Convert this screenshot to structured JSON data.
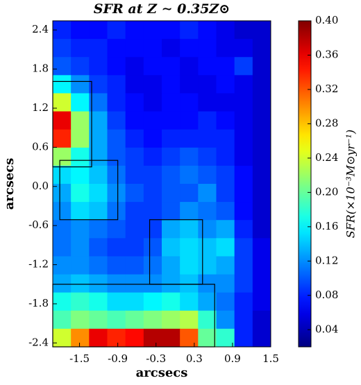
{
  "chart_data": {
    "type": "heatmap",
    "title": "SFR at Z ∼ 0.35Z⊙",
    "x_label": "arcsecs",
    "y_label": "arcsecs",
    "colorbar_label": "SFR(×10⁻³M⊙yr⁻¹)",
    "xlim": [
      -1.92,
      1.5
    ],
    "ylim": [
      -2.46,
      2.54
    ],
    "xticks": [
      -1.5,
      -0.9,
      -0.3,
      0.3,
      0.9,
      1.5
    ],
    "yticks": [
      2.4,
      1.8,
      1.2,
      0.6,
      {
        "value": 0,
        "label": "0.0"
      },
      -0.6,
      -1.2,
      -1.8,
      -2.4
    ],
    "zlim": [
      0.02,
      0.4
    ],
    "zticks": [
      0.04,
      0.08,
      0.12,
      0.16,
      {
        "value": 0.2,
        "label": "0.20"
      },
      0.24,
      0.28,
      0.32,
      0.36,
      {
        "value": 0.4,
        "label": "0.40"
      }
    ],
    "colormap": "jet",
    "z": [
      [
        0.08,
        0.07,
        0.07,
        0.08,
        0.07,
        0.07,
        0.07,
        0.08,
        0.07,
        0.06,
        0.05,
        0.05
      ],
      [
        0.09,
        0.08,
        0.08,
        0.07,
        0.07,
        0.07,
        0.06,
        0.07,
        0.07,
        0.06,
        0.06,
        0.05
      ],
      [
        0.1,
        0.09,
        0.08,
        0.07,
        0.06,
        0.07,
        0.07,
        0.06,
        0.07,
        0.07,
        0.09,
        0.05
      ],
      [
        0.16,
        0.12,
        0.09,
        0.08,
        0.06,
        0.06,
        0.07,
        0.06,
        0.06,
        0.07,
        0.06,
        0.05
      ],
      [
        0.24,
        0.16,
        0.11,
        0.08,
        0.07,
        0.06,
        0.07,
        0.07,
        0.06,
        0.06,
        0.06,
        0.05
      ],
      [
        0.36,
        0.22,
        0.13,
        0.09,
        0.07,
        0.07,
        0.07,
        0.07,
        0.08,
        0.07,
        0.06,
        0.05
      ],
      [
        0.34,
        0.22,
        0.13,
        0.1,
        0.08,
        0.07,
        0.08,
        0.08,
        0.08,
        0.08,
        0.06,
        0.05
      ],
      [
        0.22,
        0.17,
        0.13,
        0.1,
        0.09,
        0.08,
        0.09,
        0.1,
        0.09,
        0.08,
        0.06,
        0.05
      ],
      [
        0.15,
        0.16,
        0.14,
        0.11,
        0.09,
        0.09,
        0.1,
        0.11,
        0.1,
        0.09,
        0.07,
        0.05
      ],
      [
        0.13,
        0.17,
        0.15,
        0.12,
        0.1,
        0.09,
        0.1,
        0.1,
        0.12,
        0.09,
        0.07,
        0.05
      ],
      [
        0.12,
        0.15,
        0.14,
        0.11,
        0.09,
        0.09,
        0.1,
        0.12,
        0.11,
        0.1,
        0.07,
        0.05
      ],
      [
        0.11,
        0.12,
        0.11,
        0.1,
        0.09,
        0.09,
        0.13,
        0.14,
        0.12,
        0.13,
        0.08,
        0.05
      ],
      [
        0.11,
        0.12,
        0.1,
        0.09,
        0.09,
        0.1,
        0.14,
        0.15,
        0.14,
        0.15,
        0.09,
        0.06
      ],
      [
        0.12,
        0.12,
        0.11,
        0.1,
        0.1,
        0.11,
        0.13,
        0.15,
        0.14,
        0.13,
        0.09,
        0.06
      ],
      [
        0.13,
        0.14,
        0.13,
        0.12,
        0.12,
        0.12,
        0.13,
        0.14,
        0.12,
        0.12,
        0.09,
        0.06
      ],
      [
        0.17,
        0.18,
        0.17,
        0.15,
        0.15,
        0.16,
        0.17,
        0.15,
        0.13,
        0.11,
        0.08,
        0.06
      ],
      [
        0.19,
        0.21,
        0.2,
        0.19,
        0.2,
        0.21,
        0.22,
        0.23,
        0.18,
        0.12,
        0.08,
        0.05
      ],
      [
        0.24,
        0.3,
        0.36,
        0.34,
        0.35,
        0.38,
        0.38,
        0.32,
        0.2,
        0.18,
        0.08,
        0.05
      ]
    ],
    "regions": [
      {
        "x0": -1.92,
        "x1": -1.31,
        "y0": 0.3,
        "y1": 1.61
      },
      {
        "x0": -1.81,
        "x1": -0.9,
        "y0": -0.51,
        "y1": 0.4
      },
      {
        "x0": -0.4,
        "x1": 0.43,
        "y0": -1.5,
        "y1": -0.51
      },
      {
        "x0": -1.92,
        "x1": 0.62,
        "y0": -2.46,
        "y1": -1.5
      }
    ]
  }
}
